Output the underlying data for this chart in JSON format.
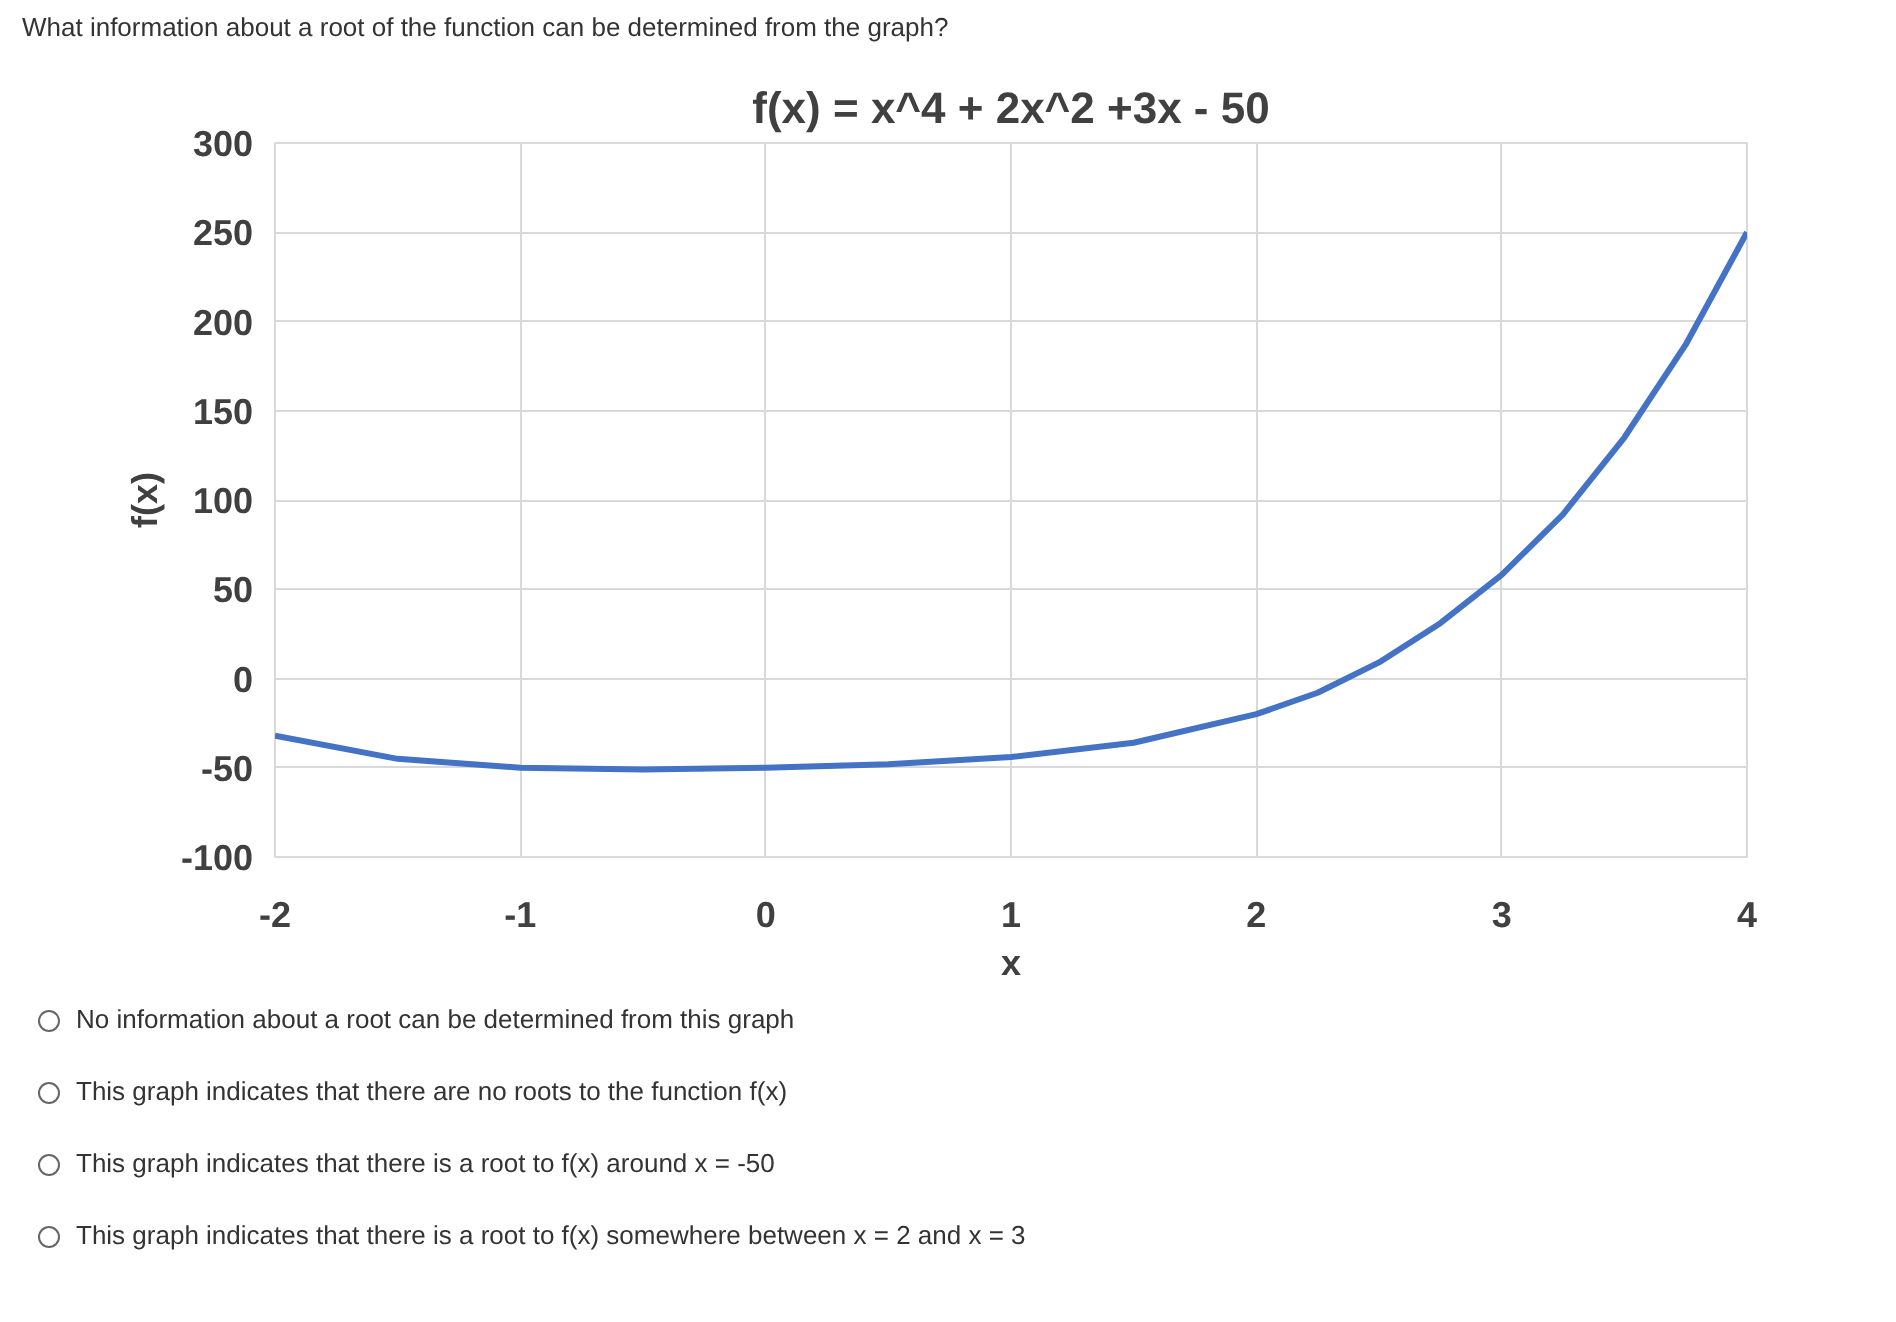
{
  "chart_data": {
    "type": "line",
    "title": "f(x) = x^4 + 2x^2 +3x - 50",
    "xlabel": "x",
    "ylabel": "f(x)",
    "annotations": [
      "What information about a root of the function can be determined from the graph?",
      "No information about a root can be determined from this graph",
      "This graph indicates that there are no roots to the function f(x)",
      "This graph indicates that there is a root to f(x) around x = -50",
      "This graph indicates that there is a root to f(x) somewhere between x = 2 and x = 3"
    ],
    "x": [
      -2,
      -1.5,
      -1,
      -0.5,
      0,
      0.5,
      1,
      1.5,
      2,
      2.25,
      2.5,
      2.75,
      3,
      3.25,
      3.5,
      3.75,
      4
    ],
    "series": [
      {
        "color": "#4472c4",
        "values": [
          -32,
          -45,
          -50,
          -51,
          -50,
          -48,
          -44,
          -36,
          -20,
          -8,
          9,
          31,
          58,
          92,
          135,
          187,
          250
        ]
      }
    ],
    "xlim": [
      -2,
      4
    ],
    "xticks": [
      -2,
      -1,
      0,
      1,
      2,
      3,
      4
    ],
    "ylim": [
      -100,
      300
    ],
    "yticks": [
      -100,
      -50,
      0,
      50,
      100,
      150,
      200,
      250,
      300
    ],
    "grid": true,
    "marker": "none",
    "line_style": "solid"
  }
}
